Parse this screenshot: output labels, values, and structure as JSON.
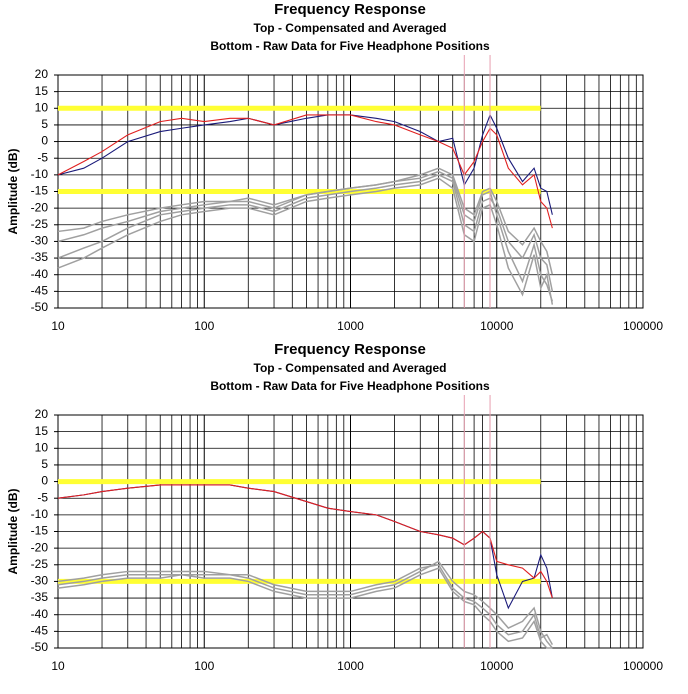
{
  "chart_data": [
    {
      "type": "line",
      "title": "Frequency Response",
      "subtitle": [
        "Top -  Compensated and Averaged",
        "Bottom - Raw Data for Five Headphone Positions"
      ],
      "ylabel": "Amplitude (dB)",
      "xscale": "log",
      "grid": true,
      "minor_grid": true,
      "xlim": [
        10,
        100000
      ],
      "xticks": [
        10,
        100,
        1000,
        10000,
        100000
      ],
      "ylim": [
        -50,
        20
      ],
      "yticks": [
        20,
        15,
        10,
        5,
        0,
        -5,
        -10,
        -15,
        -20,
        -25,
        -30,
        -35,
        -40,
        -45,
        -50
      ],
      "x": [
        10,
        15,
        20,
        30,
        50,
        70,
        100,
        150,
        200,
        300,
        500,
        700,
        1000,
        1500,
        2000,
        3000,
        4000,
        5000,
        6000,
        7000,
        8000,
        9000,
        10000,
        12000,
        15000,
        18000,
        20000,
        22000,
        24000
      ],
      "series": [
        {
          "color": "#a0a0a0",
          "values": [
            -35,
            -32,
            -30,
            -26,
            -22,
            -21,
            -20,
            -19,
            -19,
            -21,
            -17,
            -16,
            -15,
            -14,
            -13,
            -12,
            -10,
            -12,
            -25,
            -27,
            -18,
            -17,
            -20,
            -30,
            -35,
            -28,
            -35,
            -37,
            -45
          ]
        },
        {
          "color": "#a0a0a0",
          "values": [
            -30,
            -28,
            -26,
            -24,
            -21,
            -20,
            -19,
            -18,
            -18,
            -20,
            -16,
            -15,
            -14,
            -13,
            -12,
            -11,
            -9,
            -11,
            -22,
            -24,
            -16,
            -15,
            -22,
            -33,
            -42,
            -31,
            -40,
            -43,
            -48
          ]
        },
        {
          "color": "#a0a0a0",
          "values": [
            -38,
            -35,
            -32,
            -28,
            -24,
            -22,
            -21,
            -20,
            -20,
            -22,
            -18,
            -17,
            -16,
            -15,
            -14,
            -13,
            -11,
            -14,
            -28,
            -30,
            -20,
            -19,
            -25,
            -38,
            -46,
            -34,
            -44,
            -40,
            -49
          ]
        },
        {
          "color": "#a0a0a0",
          "values": [
            -27,
            -26,
            -24,
            -22,
            -20,
            -19,
            -18,
            -18,
            -17,
            -19,
            -16,
            -15,
            -14,
            -13,
            -12,
            -10,
            -8,
            -10,
            -20,
            -22,
            -15,
            -14,
            -18,
            -27,
            -31,
            -26,
            -30,
            -33,
            -40
          ]
        },
        {
          "color": "#1a1a7a",
          "values": [
            -10,
            -8,
            -5,
            0,
            3,
            4,
            5,
            6,
            7,
            5,
            7,
            8,
            8,
            7,
            6,
            3,
            0,
            1,
            -13,
            -8,
            2,
            8,
            4,
            -5,
            -12,
            -8,
            -14,
            -15,
            -22
          ]
        },
        {
          "color": "#e02020",
          "values": [
            -10,
            -6,
            -3,
            2,
            6,
            7,
            6,
            7,
            7,
            5,
            8,
            8,
            8,
            6,
            5,
            2,
            0,
            -2,
            -10,
            -6,
            0,
            4,
            2,
            -8,
            -13,
            -10,
            -18,
            -20,
            -26
          ]
        }
      ],
      "reference_color": "#ffff33",
      "reference_lines": [
        {
          "y": 10,
          "x": [
            10,
            20000
          ]
        },
        {
          "y": -15,
          "x": [
            10,
            20000
          ]
        }
      ],
      "vline_color": "#e8a0b0",
      "vlines": [
        6000,
        9000
      ]
    },
    {
      "type": "line",
      "title": "Frequency Response",
      "subtitle": [
        "Top -  Compensated and Averaged",
        "Bottom - Raw Data for Five Headphone Positions"
      ],
      "ylabel": "Amplitude (dB)",
      "xscale": "log",
      "grid": true,
      "minor_grid": true,
      "xlim": [
        10,
        100000
      ],
      "xticks": [
        10,
        100,
        1000,
        10000,
        100000
      ],
      "ylim": [
        -50,
        20
      ],
      "yticks": [
        20,
        15,
        10,
        5,
        0,
        -5,
        -10,
        -15,
        -20,
        -25,
        -30,
        -35,
        -40,
        -45,
        -50
      ],
      "x": [
        10,
        15,
        20,
        30,
        50,
        70,
        100,
        150,
        200,
        300,
        500,
        700,
        1000,
        1500,
        2000,
        3000,
        4000,
        5000,
        6000,
        7000,
        8000,
        9000,
        10000,
        12000,
        15000,
        18000,
        20000,
        22000,
        24000
      ],
      "series": [
        {
          "color": "#a0a0a0",
          "values": [
            -31,
            -30,
            -29,
            -28,
            -28,
            -28,
            -28,
            -28,
            -29,
            -32,
            -34,
            -34,
            -34,
            -32,
            -31,
            -27,
            -24,
            -30,
            -33,
            -34,
            -36,
            -38,
            -40,
            -44,
            -42,
            -38,
            -45,
            -48,
            -50
          ]
        },
        {
          "color": "#a0a0a0",
          "values": [
            -30,
            -29,
            -28,
            -27,
            -27,
            -27,
            -27,
            -28,
            -28,
            -31,
            -33,
            -33,
            -33,
            -31,
            -30,
            -26,
            -25,
            -32,
            -35,
            -36,
            -38,
            -40,
            -43,
            -46,
            -45,
            -40,
            -47,
            -46,
            -49
          ]
        },
        {
          "color": "#a0a0a0",
          "values": [
            -32,
            -31,
            -30,
            -29,
            -29,
            -28,
            -29,
            -29,
            -30,
            -33,
            -35,
            -35,
            -35,
            -33,
            -32,
            -28,
            -26,
            -33,
            -36,
            -37,
            -40,
            -42,
            -45,
            -48,
            -47,
            -42,
            -48,
            -50,
            -50
          ]
        },
        {
          "color": "#1a1a7a",
          "values": [
            -5,
            -4,
            -3,
            -2,
            -1,
            -1,
            -1,
            -1,
            -2,
            -3,
            -6,
            -8,
            -9,
            -10,
            -12,
            -15,
            -16,
            -17,
            -19,
            -17,
            -15,
            -17,
            -28,
            -38,
            -30,
            -29,
            -22,
            -26,
            -35
          ]
        },
        {
          "color": "#e02020",
          "values": [
            -5,
            -4,
            -3,
            -2,
            -1,
            -1,
            -1,
            -1,
            -2,
            -3,
            -6,
            -8,
            -9,
            -10,
            -12,
            -15,
            -16,
            -17,
            -19,
            -17,
            -15,
            -17,
            -24,
            -25,
            -26,
            -29,
            -27,
            -30,
            -35
          ]
        }
      ],
      "reference_color": "#ffff33",
      "reference_lines": [
        {
          "y": 0,
          "x": [
            10,
            20000
          ]
        },
        {
          "y": -30,
          "x": [
            10,
            20000
          ]
        }
      ],
      "vline_color": "#e8a0b0",
      "vlines": [
        6000,
        9000
      ]
    }
  ]
}
